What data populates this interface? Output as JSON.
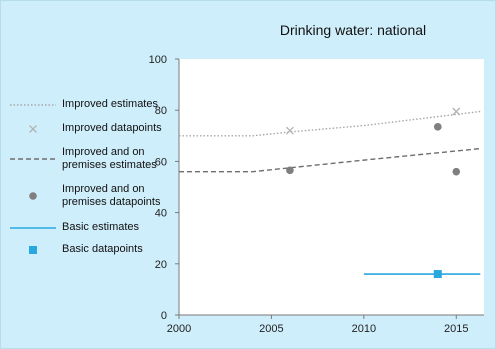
{
  "chart_data": {
    "type": "line",
    "title": "Drinking water: national",
    "xlim": [
      2000,
      2016.5
    ],
    "ylim": [
      0,
      100
    ],
    "xticks": [
      2000,
      2005,
      2010,
      2015
    ],
    "yticks": [
      0,
      20,
      40,
      60,
      80,
      100
    ],
    "grid": false,
    "legend_position": "left",
    "series": [
      {
        "name": "Improved estimates",
        "kind": "line",
        "style": "dotted",
        "color": "#a6a6a6",
        "points": [
          [
            2000,
            70
          ],
          [
            2004,
            70
          ],
          [
            2006,
            71.5
          ],
          [
            2010,
            74
          ],
          [
            2016.3,
            79.5
          ]
        ]
      },
      {
        "name": "Improved datapoints",
        "kind": "marker",
        "marker": "x",
        "color": "#b3b3b3",
        "points": [
          [
            2006,
            72
          ],
          [
            2015,
            79.5
          ]
        ]
      },
      {
        "name": "Improved and on premises estimates",
        "kind": "line",
        "style": "dashed",
        "color": "#6e6e6e",
        "points": [
          [
            2000,
            56
          ],
          [
            2004,
            56
          ],
          [
            2006,
            57.5
          ],
          [
            2010,
            60.5
          ],
          [
            2016.3,
            65
          ]
        ]
      },
      {
        "name": "Improved and on premises datapoints",
        "kind": "marker",
        "marker": "circle",
        "color": "#7f7f7f",
        "points": [
          [
            2006,
            56.5
          ],
          [
            2014,
            73.5
          ],
          [
            2015,
            56
          ]
        ]
      },
      {
        "name": "Basic estimates",
        "kind": "line",
        "style": "solid",
        "color": "#29a8e0",
        "points": [
          [
            2010,
            16
          ],
          [
            2016.3,
            16
          ]
        ]
      },
      {
        "name": "Basic datapoints",
        "kind": "marker",
        "marker": "square",
        "color": "#29a8e0",
        "points": [
          [
            2014,
            16
          ]
        ]
      }
    ]
  },
  "legend": [
    {
      "label_lines": [
        "Improved estimates"
      ]
    },
    {
      "label_lines": [
        "Improved datapoints"
      ]
    },
    {
      "label_lines": [
        "Improved and on",
        "premises estimates"
      ]
    },
    {
      "label_lines": [
        "Improved and on",
        "premises datapoints"
      ]
    },
    {
      "label_lines": [
        "Basic estimates"
      ]
    },
    {
      "label_lines": [
        "Basic datapoints"
      ]
    }
  ]
}
